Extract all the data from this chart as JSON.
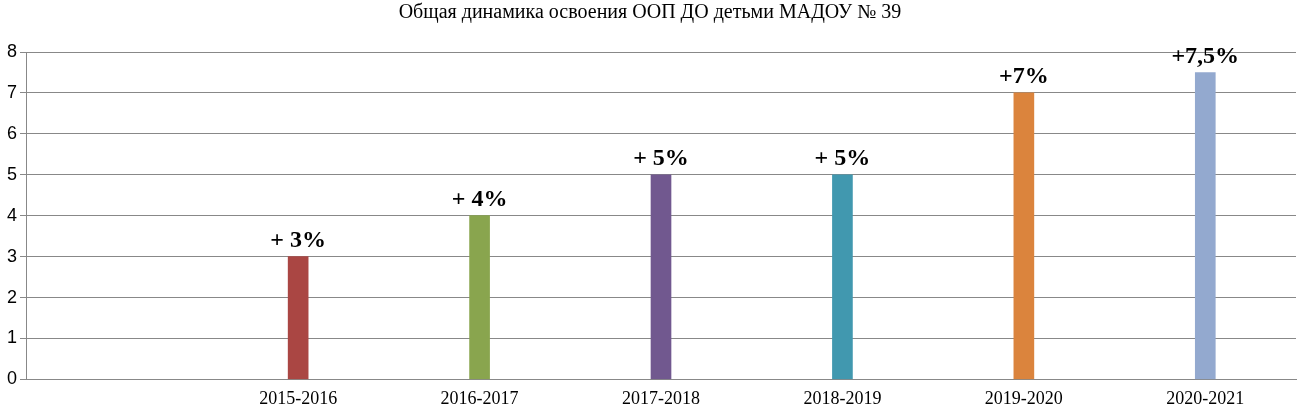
{
  "chart_data": {
    "type": "bar",
    "title": "Общая динамика освоения ООП ДО детьми МАДОУ № 39",
    "categories": [
      null,
      "2015-2016",
      "2016-2017",
      "2017-2018",
      "2018-2019",
      "2019-2020",
      "2020-2021"
    ],
    "values": [
      null,
      3,
      4,
      5,
      5,
      7,
      7.5
    ],
    "colors": [
      "#4f81bd",
      "#aa4643",
      "#89a54e",
      "#71588f",
      "#4198af",
      "#db843d",
      "#93a9cf"
    ],
    "value_labels": [
      null,
      "+ 3%",
      "+ 4%",
      "+ 5%",
      "+ 5%",
      "+7%",
      "+7,5%"
    ],
    "ylim": [
      0,
      8
    ],
    "yticks": [
      0,
      1,
      2,
      3,
      4,
      5,
      6,
      7,
      8
    ],
    "grid": "y",
    "legend": false
  }
}
